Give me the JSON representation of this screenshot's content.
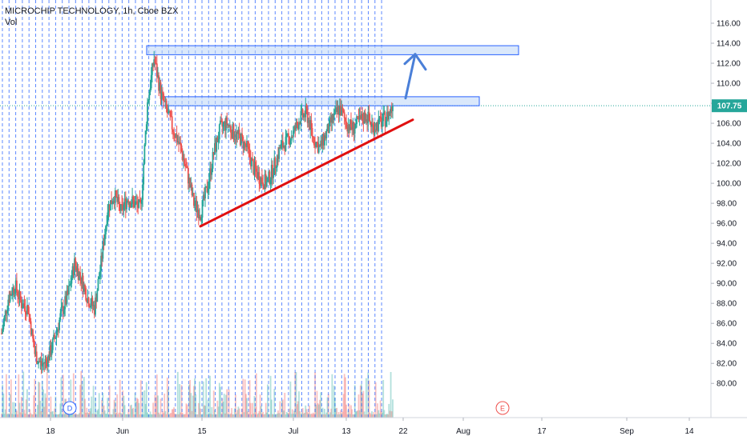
{
  "header": {
    "title": "MICROCHIP TECHNOLOGY, 1h, Cboe BZX",
    "volume_label": "Vol"
  },
  "colors": {
    "up": "#26a69a",
    "down": "#ef5350",
    "grid_dash": "#2962ff",
    "zone_fill": "#bbd6f7",
    "zone_stroke": "#2962ff",
    "trendline": "#e01010",
    "arrow": "#4a7fd8",
    "price_badge": "#26a69a",
    "event_d": "#2962ff",
    "event_e": "#ef5350"
  },
  "chart_data": {
    "type": "candlestick",
    "title": "MICROCHIP TECHNOLOGY, 1h, Cboe BZX",
    "ylim": [
      78.5,
      117
    ],
    "y_ticks": [
      80,
      82,
      84,
      86,
      88,
      90,
      92,
      94,
      96,
      98,
      100,
      102,
      104,
      106,
      108,
      110,
      112,
      114,
      116
    ],
    "y_tick_labels": [
      "80.00",
      "82.00",
      "84.00",
      "86.00",
      "88.00",
      "90.00",
      "92.00",
      "94.00",
      "96.00",
      "98.00",
      "100.00",
      "102.00",
      "104.00",
      "106.00",
      "108.00",
      "110.00",
      "112.00",
      "114.00",
      "116.00"
    ],
    "x_tick_labels": [
      "18",
      "Jun",
      "15",
      "Jul",
      "13",
      "22",
      "Aug",
      "17",
      "Sep",
      "14"
    ],
    "last_price": 107.75,
    "last_price_label": "107.75",
    "resistance_zones": [
      {
        "y_low": 112.85,
        "y_high": 113.75
      },
      {
        "y_low": 107.75,
        "y_high": 108.65
      }
    ],
    "support_trendline": {
      "start": 95.7,
      "end": 106.35
    },
    "projection_arrow": {
      "from": 108.5,
      "to": 112.9
    },
    "events": [
      {
        "label": "D"
      },
      {
        "label": "E"
      }
    ],
    "price_path": [
      85,
      88.5,
      89.8,
      88,
      87.5,
      83,
      81.8,
      82.5,
      84.5,
      87,
      88.8,
      92,
      90.5,
      88.5,
      87.5,
      92,
      97.5,
      98.8,
      97.2,
      98.5,
      98,
      97.5,
      108,
      112.5,
      109,
      107,
      105.2,
      103.5,
      101,
      98,
      97,
      99.5,
      103,
      105.5,
      106,
      105,
      104.5,
      103.5,
      101.5,
      100.5,
      100,
      101.5,
      103.5,
      104.2,
      105,
      106.5,
      107,
      104.5,
      103.5,
      105,
      106.5,
      107.5,
      106,
      105.5,
      106.2,
      106.8,
      105.6,
      106,
      106.5,
      107.7
    ]
  }
}
